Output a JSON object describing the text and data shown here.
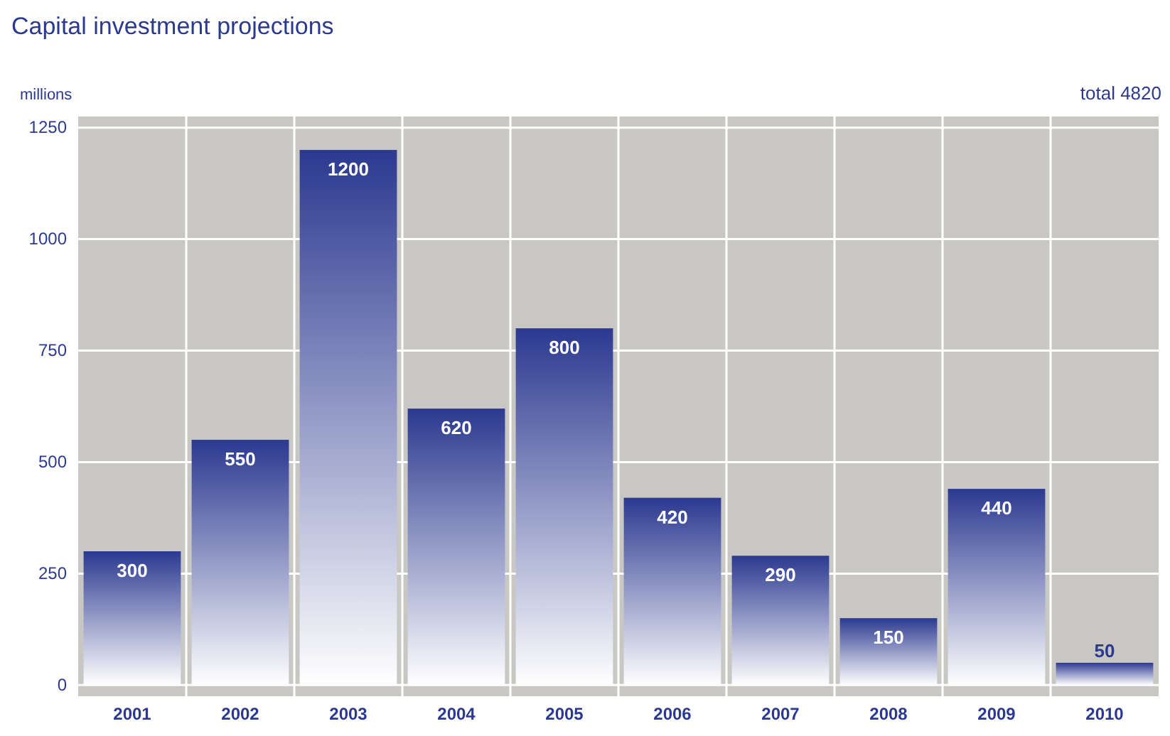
{
  "chart_data": {
    "type": "bar",
    "title": "Capital investment projections",
    "ylabel": "millions",
    "annotations": [
      "total 4820"
    ],
    "categories": [
      "2001",
      "2002",
      "2003",
      "2004",
      "2005",
      "2006",
      "2007",
      "2008",
      "2009",
      "2010"
    ],
    "values": [
      300,
      550,
      1200,
      620,
      800,
      420,
      290,
      150,
      440,
      50
    ],
    "color": "#2b3990",
    "ylim": [
      -25,
      1275
    ],
    "yticks": [
      0,
      250,
      500,
      750,
      1000,
      1250
    ],
    "grid": true,
    "data_labels": true
  }
}
